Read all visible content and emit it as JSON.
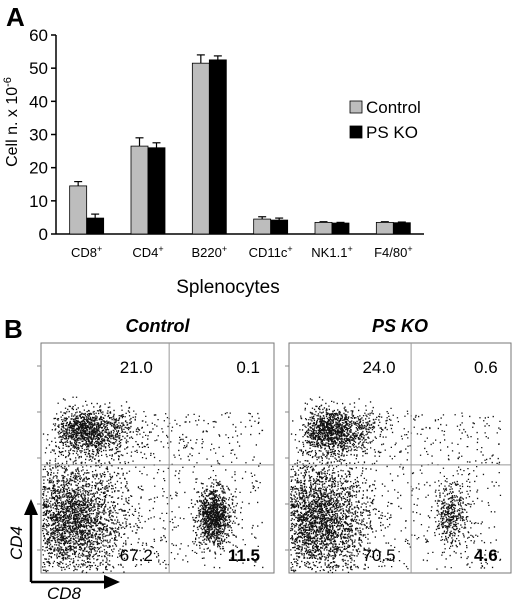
{
  "panel_a_label": "A",
  "panel_b_label": "B",
  "chart_data": [
    {
      "type": "bar",
      "xlabel": "Splenocytes",
      "ylabel": "Cell n. x 10",
      "ylabel_exponent": "-6",
      "ylim": [
        0,
        60
      ],
      "yticks": [
        "0",
        "10",
        "20",
        "30",
        "40",
        "50",
        "60"
      ],
      "categories": [
        {
          "name": "CD8",
          "sup": "+"
        },
        {
          "name": "CD4",
          "sup": "+"
        },
        {
          "name": "B220",
          "sup": "+"
        },
        {
          "name": "CD11c",
          "sup": "+"
        },
        {
          "name": "NK1.1",
          "sup": "+"
        },
        {
          "name": "F4/80",
          "sup": "+"
        }
      ],
      "series": [
        {
          "name": "Control",
          "color": "#bdbdbd",
          "values": [
            14.5,
            26.5,
            51.5,
            4.5,
            3.5,
            3.5
          ],
          "errors": [
            1.3,
            2.5,
            2.5,
            0.7,
            0.2,
            0.2
          ]
        },
        {
          "name": "PS KO",
          "color": "#000000",
          "values": [
            4.8,
            26.0,
            52.5,
            4.2,
            3.3,
            3.4
          ],
          "errors": [
            1.2,
            1.5,
            1.2,
            0.6,
            0.2,
            0.2
          ]
        }
      ],
      "legend_position": "right",
      "grid": false
    },
    {
      "type": "scatter",
      "title": "Control",
      "xlabel": "CD8",
      "ylabel": "CD4",
      "quadrants": {
        "top_left": "21.0",
        "top_right": "0.1",
        "bottom_left": "67.2",
        "bottom_right": "11.5"
      }
    },
    {
      "type": "scatter",
      "title": "PS KO",
      "xlabel": "CD8",
      "ylabel": "CD4",
      "quadrants": {
        "top_left": "24.0",
        "top_right": "0.6",
        "bottom_left": "70.5",
        "bottom_right": "4.6"
      }
    }
  ]
}
